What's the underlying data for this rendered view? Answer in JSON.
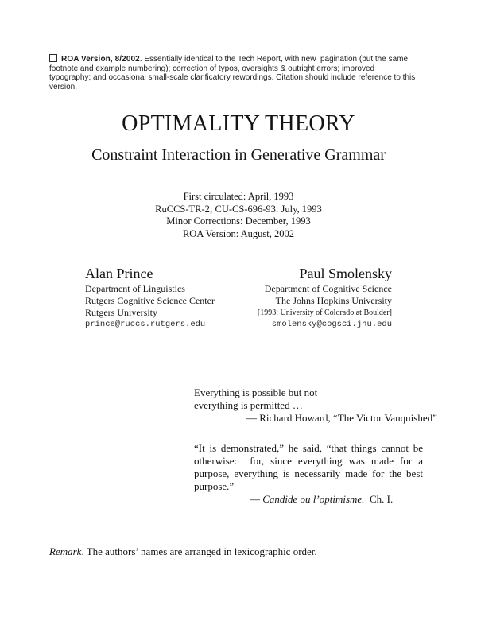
{
  "page": {
    "notice": {
      "label": "ROA Version, 8/2002",
      "text": ". Essentially identical to the Tech Report, with new  pagination (but the same footnote and example numbering); correction of typos, oversights & outright errors; improved typography; and occasional small-scale clarificatory rewordings. Citation should include reference to this version."
    },
    "title": "OPTIMALITY THEORY",
    "subtitle": "Constraint Interaction in Generative Grammar",
    "dates": [
      "First circulated: April, 1993",
      "RuCCS-TR-2; CU-CS-696-93: July, 1993",
      "Minor Corrections: December, 1993",
      "ROA Version: August, 2002"
    ],
    "authors": [
      {
        "name": "Alan Prince",
        "lines": [
          "Department of Linguistics",
          "Rutgers Cognitive Science Center",
          "Rutgers University"
        ],
        "email": "prince@ruccs.rutgers.edu"
      },
      {
        "name": "Paul Smolensky",
        "lines": [
          "Department of Cognitive Science",
          "The Johns Hopkins University"
        ],
        "note": "[1993: University of Colorado at Boulder]",
        "email": "smolensky@cogsci.jhu.edu"
      }
    ],
    "epigraph1": {
      "lines": [
        "Everything is possible but not",
        "everything is permitted …"
      ],
      "attribution": "— Richard Howard, “The Victor Vanquished”"
    },
    "epigraph2": {
      "text": "“It is demonstrated,” he said, “that things cannot be otherwise:  for, since everything was made for a purpose, everything is necessarily made for the best purpose.”",
      "attribution_dash": "— ",
      "attribution_italic": "Candide ou l’optimisme.",
      "attribution_rest": "  Ch. I."
    },
    "remark": {
      "label": "Remark",
      "text": ". The authors’ names are arranged in lexicographic order."
    }
  }
}
